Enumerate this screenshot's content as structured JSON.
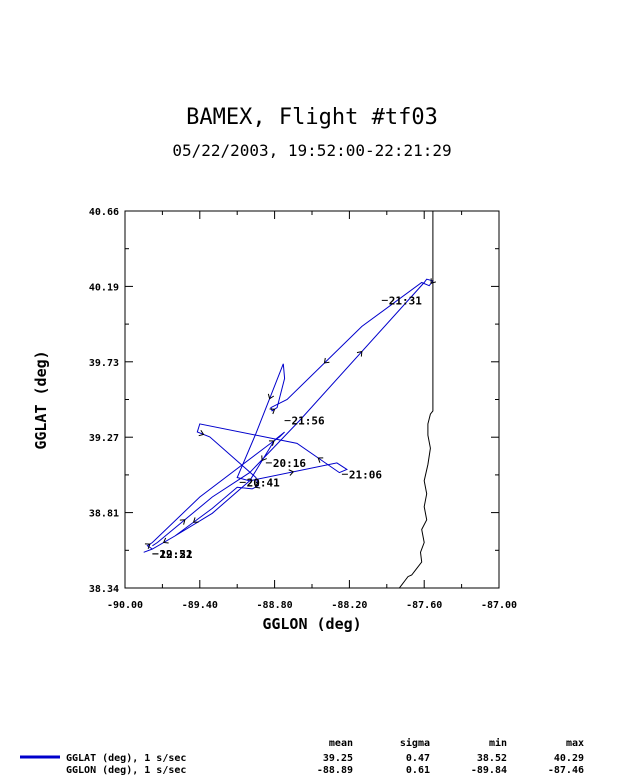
{
  "chart_data": {
    "type": "line",
    "title": "BAMEX, Flight #tf03",
    "subtitle": "05/22/2003, 19:52:00-22:21:29",
    "xlabel": "GGLON (deg)",
    "ylabel": "GGLAT (deg)",
    "xlim": [
      -90.0,
      -87.0
    ],
    "ylim": [
      38.34,
      40.66
    ],
    "xticks": [
      "-90.00",
      "-89.40",
      "-88.80",
      "-88.20",
      "-87.60",
      "-87.00"
    ],
    "yticks": [
      "40.66",
      "40.19",
      "39.73",
      "39.27",
      "38.81",
      "38.34"
    ],
    "grid": false,
    "series": [
      {
        "name": "GGLAT (deg), 1 s/sec",
        "color": "#0000cc",
        "lon": [
          -89.78,
          -89.74,
          -89.3,
          -89.0,
          -88.6,
          -87.6,
          -87.58,
          -87.53,
          -87.56,
          -87.62,
          -88.1,
          -88.7,
          -88.83,
          -88.82,
          -88.78,
          -88.72,
          -88.73,
          -88.95,
          -89.1,
          -89.0,
          -88.3,
          -88.22,
          -88.28,
          -88.62,
          -89.4,
          -89.42,
          -89.32,
          -88.95,
          -88.93,
          -88.98,
          -89.1,
          -89.3,
          -89.6,
          -89.78,
          -89.82,
          -89.78,
          -89.4,
          -88.85,
          -88.76,
          -88.72,
          -88.8,
          -89.0,
          -89.3,
          -89.6,
          -89.78,
          -89.85
        ],
        "lat": [
          38.6,
          38.62,
          38.9,
          39.05,
          39.37,
          40.22,
          40.24,
          40.23,
          40.2,
          40.22,
          39.95,
          39.5,
          39.45,
          39.43,
          39.45,
          39.63,
          39.72,
          39.29,
          39.02,
          39.0,
          39.11,
          39.07,
          39.05,
          39.23,
          39.35,
          39.3,
          39.27,
          39.02,
          38.97,
          38.95,
          38.96,
          38.83,
          38.66,
          38.58,
          38.6,
          38.62,
          38.9,
          39.22,
          39.27,
          39.3,
          39.25,
          39.0,
          38.8,
          38.66,
          38.58,
          38.56
        ]
      },
      {
        "name": "state-boundary",
        "color": "#000000",
        "lon": [
          -87.53,
          -87.53,
          -87.53,
          -87.55,
          -87.57,
          -87.57,
          -87.55,
          -87.57,
          -87.6,
          -87.58,
          -87.6,
          -87.58,
          -87.62,
          -87.6,
          -87.63,
          -87.62,
          -87.67,
          -87.7,
          -87.73,
          -87.76,
          -87.78,
          -87.8
        ],
        "lat": [
          40.66,
          40.2,
          39.43,
          39.41,
          39.35,
          39.28,
          39.2,
          39.1,
          39.0,
          38.92,
          38.84,
          38.76,
          38.7,
          38.62,
          38.56,
          38.5,
          38.45,
          38.42,
          38.41,
          38.38,
          38.36,
          38.34
        ]
      }
    ],
    "annotations": [
      {
        "text": "21:31",
        "lon": -87.9,
        "lat": 40.11
      },
      {
        "text": "21:56",
        "lon": -88.68,
        "lat": 39.37
      },
      {
        "text": "20:16",
        "lon": -88.83,
        "lat": 39.11
      },
      {
        "text": "21:06",
        "lon": -88.22,
        "lat": 39.04
      },
      {
        "text": "20:41",
        "lon": -89.04,
        "lat": 38.99
      },
      {
        "text": "22:21",
        "lon": -89.74,
        "lat": 38.55
      },
      {
        "text": "19:52",
        "lon": -89.74,
        "lat": 38.55
      }
    ],
    "stats": {
      "headers": [
        "mean",
        "sigma",
        "min",
        "max"
      ],
      "rows": [
        {
          "label": "GGLAT (deg), 1 s/sec",
          "values": [
            "39.25",
            "0.47",
            "38.52",
            "40.29"
          ],
          "color": "#0000cc"
        },
        {
          "label": "GGLON (deg), 1 s/sec",
          "values": [
            "-88.89",
            "0.61",
            "-89.84",
            "-87.46"
          ],
          "color": ""
        }
      ]
    }
  }
}
